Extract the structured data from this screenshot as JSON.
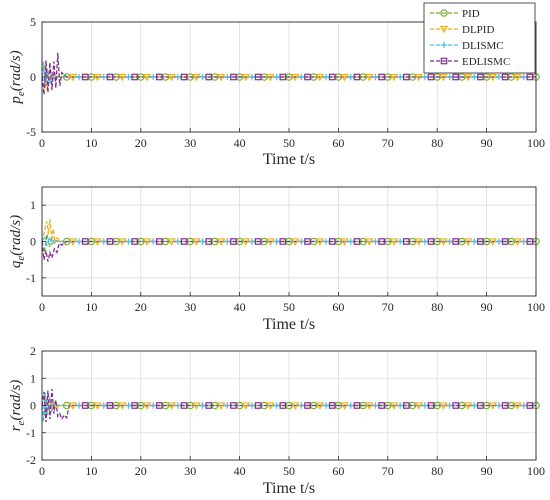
{
  "colors": {
    "PID": "#77AC30",
    "DLPID": "#EDB120",
    "DLISMC": "#4DBEEE",
    "EDLISMC": "#7E2F8E",
    "axis": "#262626",
    "grid": "#dcdcdc"
  },
  "legend": {
    "placement": "top-right",
    "entries": [
      {
        "label": "PID",
        "marker": "circle",
        "color_key": "PID"
      },
      {
        "label": "DLPID",
        "marker": "triangle-down",
        "color_key": "DLPID"
      },
      {
        "label": "DLISMC",
        "marker": "plus",
        "color_key": "DLISMC"
      },
      {
        "label": "EDLISMC",
        "marker": "square",
        "color_key": "EDLISMC"
      }
    ]
  },
  "chart_data": [
    {
      "type": "line",
      "ylabel_var": "p",
      "ylabel_sub": "e",
      "ylabel_unit": "(rad/s)",
      "xlabel": "Time t/s",
      "xlim": [
        0,
        100
      ],
      "ylim": [
        -5,
        5
      ],
      "xticks": [
        0,
        10,
        20,
        30,
        40,
        50,
        60,
        70,
        80,
        90,
        100
      ],
      "yticks": [
        5,
        0,
        -5
      ],
      "grid": true,
      "series": [
        {
          "name": "PID",
          "x": [
            0,
            0.5,
            1,
            1.5,
            2,
            2.5,
            3,
            4,
            5,
            100
          ],
          "y": [
            0,
            -0.8,
            0.6,
            -0.4,
            0.2,
            -0.1,
            0.05,
            0,
            0,
            0
          ]
        },
        {
          "name": "DLPID",
          "x": [
            0,
            0.5,
            1,
            1.5,
            2,
            2.5,
            3,
            4,
            100
          ],
          "y": [
            0,
            1.1,
            -1.2,
            0.7,
            -0.5,
            0.3,
            -0.1,
            0,
            0
          ]
        },
        {
          "name": "DLISMC",
          "x": [
            0,
            0.3,
            0.6,
            1,
            1.5,
            2,
            2.5,
            3,
            100
          ],
          "y": [
            0,
            1.4,
            -1.0,
            0.8,
            -0.6,
            0.3,
            -0.1,
            0,
            0
          ]
        },
        {
          "name": "EDLISMC",
          "x": [
            0,
            0.4,
            0.8,
            1.2,
            1.6,
            2,
            2.4,
            2.8,
            3.2,
            3.6,
            4,
            5,
            100
          ],
          "y": [
            0,
            -1.6,
            1.5,
            -1.4,
            1.3,
            -1.2,
            1.4,
            -1.0,
            2.2,
            -0.8,
            0.4,
            0,
            0
          ]
        }
      ]
    },
    {
      "type": "line",
      "ylabel_var": "q",
      "ylabel_sub": "e",
      "ylabel_unit": "(rad/s)",
      "xlabel": "Time t/s",
      "xlim": [
        0,
        100
      ],
      "ylim": [
        -1.5,
        1.5
      ],
      "xticks": [
        0,
        10,
        20,
        30,
        40,
        50,
        60,
        70,
        80,
        90,
        100
      ],
      "yticks": [
        1,
        0,
        -1
      ],
      "grid": true,
      "series": [
        {
          "name": "PID",
          "x": [
            0,
            0.5,
            1,
            1.5,
            2,
            2.5,
            3,
            4,
            5,
            100
          ],
          "y": [
            0,
            -0.3,
            0.2,
            -0.15,
            0.1,
            -0.05,
            0.02,
            0,
            0,
            0
          ]
        },
        {
          "name": "DLPID",
          "x": [
            0,
            0.5,
            1,
            1.3,
            1.6,
            2,
            2.3,
            2.6,
            3,
            4,
            100
          ],
          "y": [
            0,
            0.3,
            0.55,
            0.2,
            0.62,
            0.1,
            0.35,
            -0.05,
            0.1,
            0,
            0
          ]
        },
        {
          "name": "DLISMC",
          "x": [
            0,
            0.5,
            1,
            1.5,
            2,
            2.5,
            3,
            100
          ],
          "y": [
            0,
            0.15,
            -0.1,
            0.12,
            -0.08,
            0.05,
            0,
            0
          ]
        },
        {
          "name": "EDLISMC",
          "x": [
            0,
            0.4,
            0.8,
            1.2,
            1.6,
            2,
            2.5,
            3,
            3.5,
            4,
            5,
            100
          ],
          "y": [
            0,
            -0.5,
            -0.25,
            -0.55,
            -0.3,
            -0.45,
            -0.2,
            -0.3,
            -0.05,
            -0.1,
            0,
            0
          ]
        }
      ]
    },
    {
      "type": "line",
      "ylabel_var": "r",
      "ylabel_sub": "e",
      "ylabel_unit": "(rad/s)",
      "xlabel": "Time t/s",
      "xlim": [
        0,
        100
      ],
      "ylim": [
        -2,
        2
      ],
      "xticks": [
        0,
        10,
        20,
        30,
        40,
        50,
        60,
        70,
        80,
        90,
        100
      ],
      "yticks": [
        2,
        1,
        0,
        -1,
        -2
      ],
      "grid": true,
      "series": [
        {
          "name": "PID",
          "x": [
            0,
            0.5,
            1,
            1.5,
            2,
            2.5,
            3,
            4,
            5,
            100
          ],
          "y": [
            0,
            -0.4,
            0.3,
            -0.2,
            0.1,
            -0.05,
            0.02,
            0,
            0,
            0
          ]
        },
        {
          "name": "DLPID",
          "x": [
            0,
            0.5,
            1,
            1.5,
            2,
            2.5,
            3,
            4,
            100
          ],
          "y": [
            0,
            0.4,
            -0.35,
            0.25,
            -0.2,
            0.1,
            -0.05,
            0,
            0
          ]
        },
        {
          "name": "DLISMC",
          "x": [
            0,
            0.3,
            0.6,
            1,
            1.5,
            2,
            2.5,
            3,
            100
          ],
          "y": [
            0,
            -0.6,
            0.5,
            -0.4,
            0.3,
            -0.2,
            0.05,
            0,
            0
          ]
        },
        {
          "name": "EDLISMC",
          "x": [
            0,
            0.4,
            0.8,
            1.2,
            1.6,
            2,
            2.4,
            2.8,
            3.2,
            3.6,
            4,
            4.5,
            5,
            5.5,
            100
          ],
          "y": [
            0,
            0.5,
            -0.6,
            0.55,
            -0.5,
            0.6,
            -0.3,
            0.2,
            -0.4,
            -0.3,
            -0.5,
            -0.35,
            -0.45,
            0,
            0
          ]
        }
      ]
    }
  ]
}
